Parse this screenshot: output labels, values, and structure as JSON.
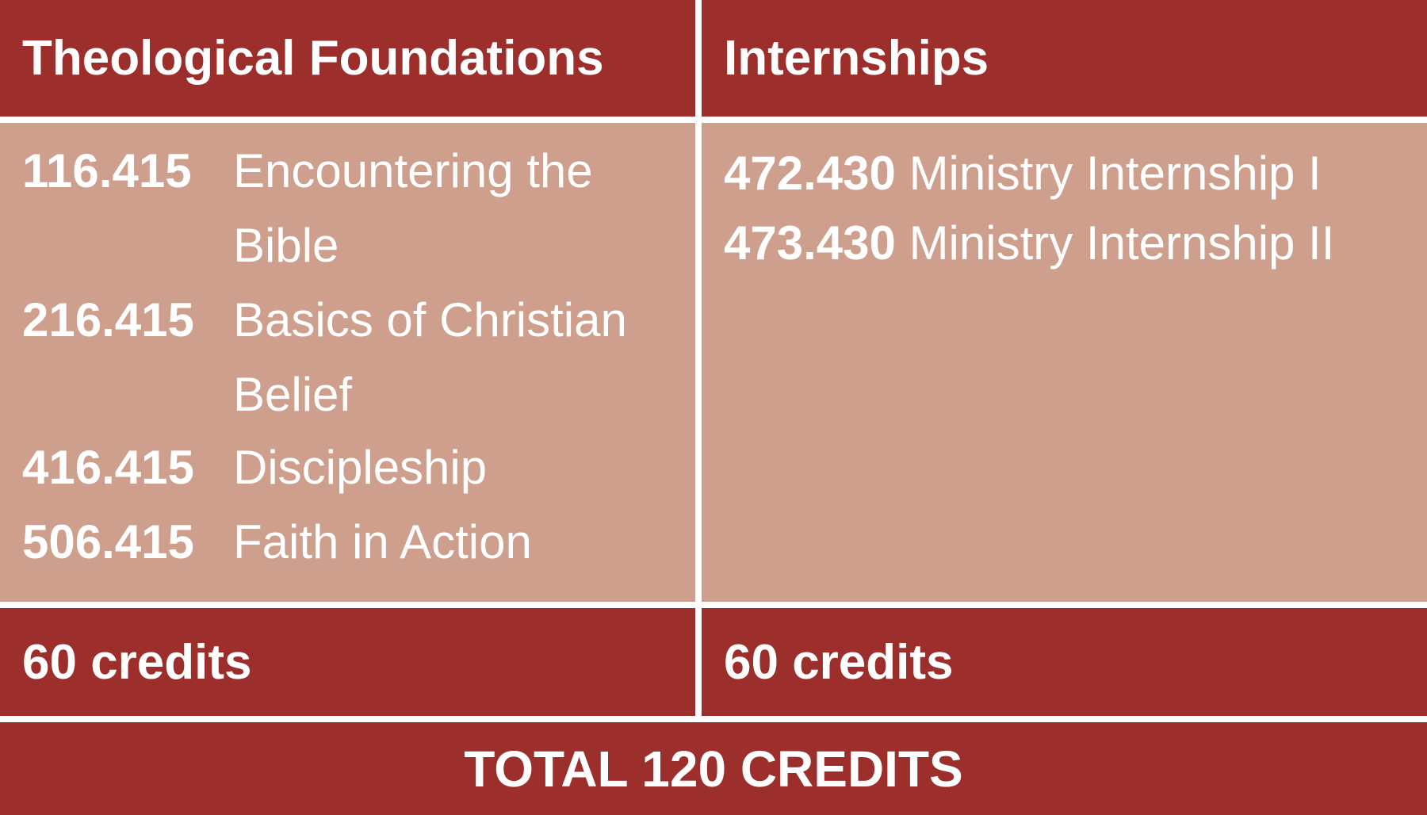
{
  "columns": [
    {
      "header": "Theological Foundations",
      "courses": [
        {
          "code": "116.415",
          "name": "Encountering the Bible"
        },
        {
          "code": "216.415",
          "name": "Basics of Christian Belief"
        },
        {
          "code": "416.415",
          "name": "Discipleship"
        },
        {
          "code": "506.415",
          "name": "Faith in Action"
        }
      ],
      "credits": "60 credits"
    },
    {
      "header": "Internships",
      "courses": [
        {
          "code": "472.430",
          "name": "Ministry Internship I"
        },
        {
          "code": "473.430",
          "name": "Ministry Internship II"
        }
      ],
      "credits": "60 credits"
    }
  ],
  "total": "TOTAL 120 CREDITS",
  "colors": {
    "header_bg": "#9c2e2b",
    "body_bg": "#cd9f8c",
    "text": "#ffffff",
    "divider": "#ffffff"
  }
}
